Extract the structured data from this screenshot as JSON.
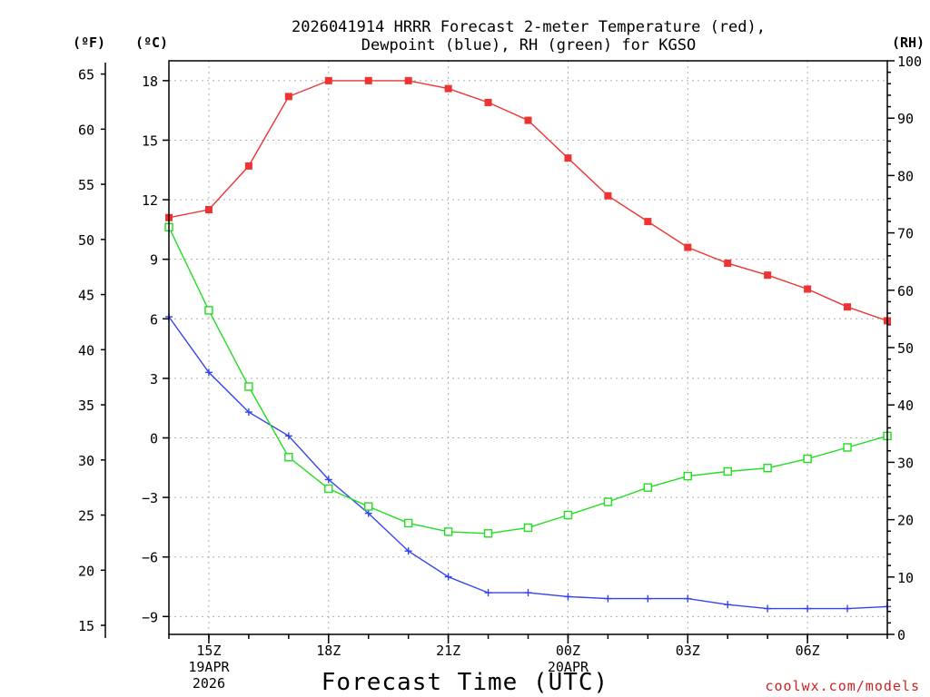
{
  "chart_data": {
    "type": "line",
    "title_line1": "2026041914 HRRR Forecast 2-meter Temperature (red),",
    "title_line2": "Dewpoint (blue), RH (green) for KGSO",
    "xlabel": "Forecast Time (UTC)",
    "units": {
      "fahrenheit": "(ºF)",
      "celsius": "(ºC)",
      "rh": "(RH)"
    },
    "credit": "coolwx.com/models",
    "x_hours": [
      14,
      15,
      16,
      17,
      18,
      19,
      20,
      21,
      22,
      23,
      24,
      25,
      26,
      27,
      28,
      29,
      30,
      31,
      32
    ],
    "x_ticks": [
      {
        "hour": 15,
        "labels": [
          "15Z",
          "19APR",
          "2026"
        ]
      },
      {
        "hour": 18,
        "labels": [
          "18Z"
        ]
      },
      {
        "hour": 21,
        "labels": [
          "21Z"
        ]
      },
      {
        "hour": 24,
        "labels": [
          "00Z",
          "20APR"
        ]
      },
      {
        "hour": 27,
        "labels": [
          "03Z"
        ]
      },
      {
        "hour": 30,
        "labels": [
          "06Z"
        ]
      }
    ],
    "celsius_axis": {
      "min": -9.9,
      "max": 19.0,
      "ticks": [
        -9,
        -6,
        -3,
        0,
        3,
        6,
        9,
        12,
        15,
        18
      ]
    },
    "fahrenheit_ticks": [
      15,
      20,
      25,
      30,
      35,
      40,
      45,
      50,
      55,
      60,
      65
    ],
    "rh_axis": {
      "min": 0,
      "max": 100,
      "ticks": [
        0,
        10,
        20,
        30,
        40,
        50,
        60,
        70,
        80,
        90,
        100
      ]
    },
    "series": [
      {
        "name": "Temperature",
        "unit": "C",
        "color": "#ee3333",
        "marker": "filled-square",
        "values": [
          11.1,
          11.5,
          13.7,
          17.2,
          18.0,
          18.0,
          18.0,
          17.6,
          16.9,
          16.0,
          14.1,
          12.2,
          10.9,
          9.6,
          8.8,
          8.2,
          7.5,
          6.6,
          5.9
        ]
      },
      {
        "name": "Dewpoint",
        "unit": "C",
        "color": "#3344ee",
        "marker": "plus",
        "values": [
          6.1,
          3.3,
          1.3,
          0.1,
          -2.1,
          -3.8,
          -5.7,
          -7.0,
          -7.8,
          -7.8,
          -8.0,
          -8.1,
          -8.1,
          -8.1,
          -8.4,
          -8.6,
          -8.6,
          -8.6,
          -8.5
        ]
      },
      {
        "name": "RH",
        "unit": "%",
        "color": "#22dd22",
        "marker": "open-square",
        "values": [
          71,
          56.5,
          43.2,
          30.9,
          25.4,
          22.3,
          19.4,
          17.9,
          17.6,
          18.6,
          20.8,
          23.1,
          25.6,
          27.6,
          28.4,
          29.0,
          30.6,
          32.6,
          34.6
        ]
      }
    ]
  }
}
